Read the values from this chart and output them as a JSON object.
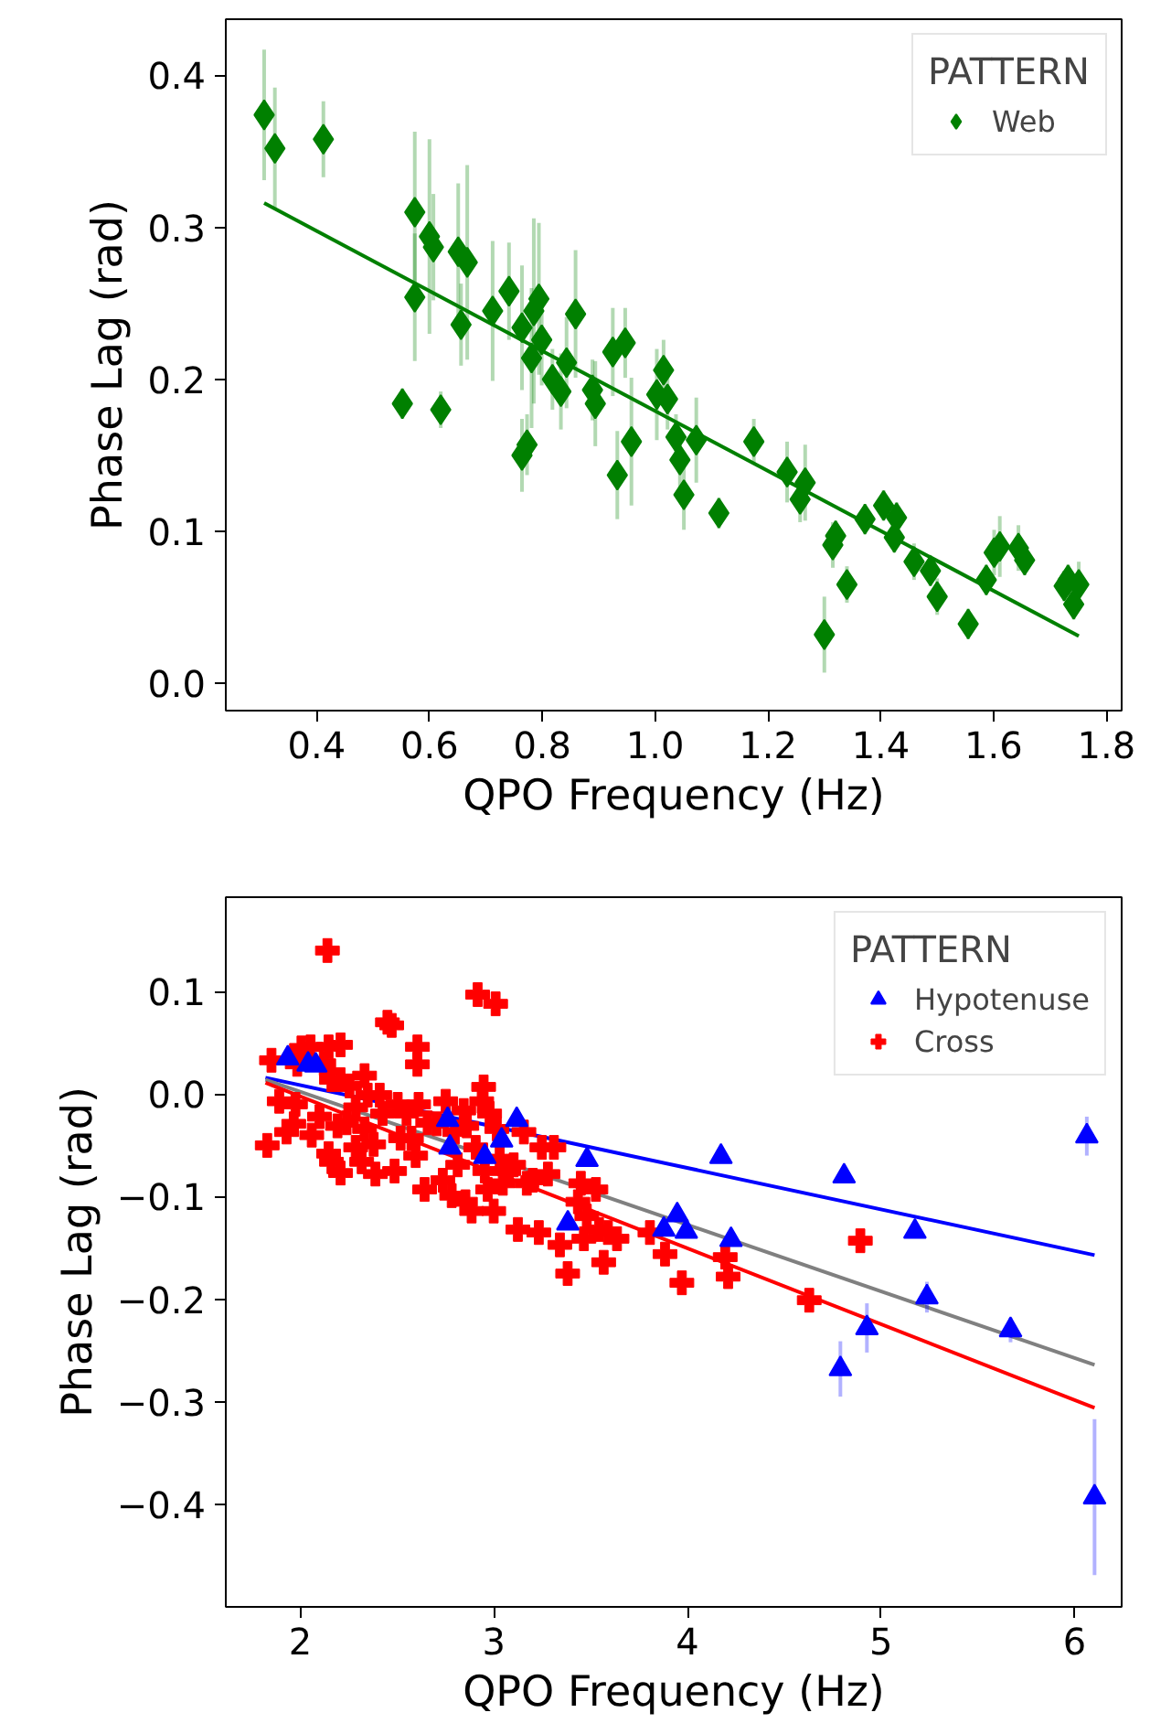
{
  "chart_data": [
    {
      "type": "scatter",
      "xlabel": "QPO Frequency (Hz)",
      "ylabel": "Phase Lag (rad)",
      "legend_title": "PATTERN",
      "legend": "top right",
      "grid": false,
      "xlim": [
        0.239,
        1.827
      ],
      "ylim": [
        -0.018,
        0.437
      ],
      "xticks": [
        0.4,
        0.6,
        0.8,
        {
          "value": 1,
          "label": "1.0"
        },
        1.2,
        1.4,
        1.6,
        1.8
      ],
      "yticks": [
        {
          "value": 0,
          "label": "0.0"
        },
        0.1,
        0.2,
        0.3,
        0.4
      ],
      "series": [
        {
          "name": "Web",
          "color": "#008000",
          "marker": "diamond",
          "x": [
            0.307,
            0.326,
            0.412,
            0.552,
            0.574,
            0.574,
            0.6,
            0.607,
            0.62,
            0.651,
            0.667,
            0.656,
            0.712,
            0.741,
            0.764,
            0.785,
            0.794,
            0.781,
            0.799,
            0.764,
            0.773,
            0.818,
            0.833,
            0.843,
            0.859,
            0.889,
            0.894,
            0.925,
            0.947,
            0.933,
            0.958,
            1.003,
            1.015,
            1.022,
            1.037,
            1.044,
            1.051,
            1.073,
            1.113,
            1.175,
            1.234,
            1.257,
            1.266,
            1.3,
            1.315,
            1.32,
            1.34,
            1.372,
            1.405,
            1.428,
            1.424,
            1.459,
            1.488,
            1.5,
            1.555,
            1.587,
            1.601,
            1.611,
            1.644,
            1.655,
            1.725,
            1.732,
            1.742,
            1.751
          ],
          "values": [
            0.374,
            0.352,
            0.358,
            0.184,
            0.31,
            0.254,
            0.294,
            0.287,
            0.18,
            0.284,
            0.277,
            0.236,
            0.245,
            0.258,
            0.234,
            0.245,
            0.253,
            0.214,
            0.226,
            0.15,
            0.157,
            0.2,
            0.192,
            0.211,
            0.243,
            0.193,
            0.184,
            0.218,
            0.224,
            0.137,
            0.159,
            0.19,
            0.206,
            0.187,
            0.162,
            0.147,
            0.124,
            0.16,
            0.112,
            0.159,
            0.139,
            0.121,
            0.132,
            0.032,
            0.091,
            0.097,
            0.065,
            0.108,
            0.117,
            0.109,
            0.096,
            0.08,
            0.074,
            0.057,
            0.039,
            0.068,
            0.086,
            0.09,
            0.089,
            0.081,
            0.064,
            0.068,
            0.052,
            0.065
          ],
          "errors": [
            0.043,
            0.04,
            0.025,
            0.01,
            0.053,
            0.042,
            0.064,
            0.035,
            0.012,
            0.045,
            0.064,
            0.027,
            0.046,
            0.032,
            0.041,
            0.061,
            0.05,
            0.046,
            0.03,
            0.024,
            0.02,
            0.02,
            0.025,
            0.03,
            0.042,
            0.02,
            0.028,
            0.029,
            0.023,
            0.029,
            0.042,
            0.03,
            0.02,
            0.02,
            0.015,
            0.02,
            0.023,
            0.028,
            0.01,
            0.015,
            0.02,
            0.015,
            0.025,
            0.025,
            0.015,
            0.01,
            0.012,
            0.01,
            0.01,
            0.01,
            0.01,
            0.012,
            0.01,
            0.012,
            0.01,
            0.01,
            0.015,
            0.02,
            0.015,
            0.01,
            0.01,
            0.01,
            0.01,
            0.015
          ]
        },
        {
          "type": "line",
          "color": "#008000",
          "x": [
            0.307,
            1.751
          ],
          "values": [
            0.316,
            0.031
          ]
        }
      ]
    },
    {
      "type": "scatter",
      "xlabel": "QPO Frequency (Hz)",
      "ylabel": "Phase Lag (rad)",
      "legend_title": "PATTERN",
      "legend": "top right",
      "grid": false,
      "xlim": [
        1.615,
        6.243
      ],
      "ylim": [
        -0.5,
        0.192
      ],
      "xticks": [
        2,
        3,
        4,
        5,
        6
      ],
      "yticks": [
        {
          "value": -0.4,
          "label": "−0.4"
        },
        {
          "value": -0.3,
          "label": "−0.3"
        },
        {
          "value": -0.2,
          "label": "−0.2"
        },
        {
          "value": -0.1,
          "label": "−0.1"
        },
        {
          "value": 0,
          "label": "0.0"
        },
        0.1
      ],
      "series": [
        {
          "name": "Hypotenuse",
          "color": "#0000ff",
          "marker": "triangle",
          "x": [
            1.935,
            2.04,
            2.08,
            2.761,
            2.773,
            2.953,
            3.04,
            3.118,
            3.382,
            3.481,
            3.878,
            3.947,
            3.994,
            4.173,
            4.225,
            4.79,
            4.809,
            4.927,
            5.175,
            5.237,
            5.669,
            6.063,
            6.103
          ],
          "values": [
            0.035,
            0.029,
            0.028,
            -0.025,
            -0.052,
            -0.061,
            -0.045,
            -0.025,
            -0.126,
            -0.064,
            -0.132,
            -0.118,
            -0.134,
            -0.061,
            -0.142,
            -0.268,
            -0.08,
            -0.228,
            -0.134,
            -0.198,
            -0.23,
            -0.041,
            -0.393
          ],
          "errors": [
            null,
            null,
            null,
            null,
            null,
            null,
            null,
            null,
            null,
            null,
            null,
            null,
            null,
            null,
            null,
            0.027,
            null,
            0.024,
            null,
            0.015,
            0.012,
            0.019,
            0.076
          ]
        },
        {
          "name": "Cross",
          "color": "#ff0000",
          "marker": "cross",
          "x": [
            1.829,
            1.851,
            1.929,
            1.891,
            1.975,
            1.966,
            2.006,
            2.053,
            1.984,
            2.059,
            2.099,
            2.14,
            2.146,
            2.208,
            2.121,
            2.161,
            2.208,
            2.254,
            2.146,
            2.161,
            2.208,
            2.192,
            2.239,
            2.286,
            2.332,
            2.332,
            2.348,
            2.379,
            2.388,
            2.317,
            2.286,
            2.41,
            2.45,
            2.472,
            2.425,
            2.487,
            2.503,
            2.518,
            2.549,
            2.574,
            2.596,
            2.605,
            2.605,
            2.611,
            2.642,
            2.658,
            2.705,
            2.736,
            2.751,
            2.782,
            2.798,
            2.813,
            2.844,
            2.853,
            2.86,
            2.885,
            2.916,
            2.937,
            2.947,
            2.906,
            2.953,
            2.968,
            2.978,
            2.999,
            3.009,
            3.015,
            3.03,
            3.046,
            3.077,
            3.102,
            3.124,
            3.155,
            3.17,
            3.201,
            3.232,
            3.248,
            3.279,
            3.31,
            3.341,
            3.381,
            3.434,
            3.465,
            3.449,
            3.48,
            3.527,
            3.543,
            3.567,
            3.589,
            3.636,
            3.806,
            3.884,
            3.971,
            4.195,
            4.21,
            4.629,
            4.893
          ],
          "values": [
            -0.05,
            0.033,
            -0.037,
            -0.007,
            -0.01,
            -0.029,
            0.045,
            0.046,
            0.029,
            -0.04,
            -0.022,
            0.14,
            0.046,
            0.048,
            0.03,
            0.014,
            0.014,
            0.008,
            -0.058,
            -0.066,
            -0.077,
            -0.031,
            -0.028,
            -0.013,
            0.018,
            -0.034,
            -0.001,
            -0.049,
            -0.078,
            -0.066,
            -0.052,
            -0.001,
            0.07,
            0.067,
            -0.019,
            -0.075,
            -0.01,
            -0.043,
            -0.019,
            -0.043,
            -0.06,
            0.046,
            0.029,
            -0.01,
            -0.093,
            -0.028,
            -0.029,
            -0.084,
            -0.007,
            -0.099,
            -0.037,
            -0.069,
            -0.016,
            -0.105,
            -0.031,
            -0.114,
            0.097,
            -0.007,
            0.007,
            -0.052,
            -0.075,
            -0.093,
            -0.019,
            -0.114,
            0.088,
            -0.034,
            -0.063,
            -0.087,
            -0.075,
            -0.069,
            -0.132,
            -0.037,
            -0.087,
            -0.084,
            -0.135,
            -0.052,
            -0.078,
            -0.052,
            -0.147,
            -0.175,
            -0.105,
            -0.141,
            -0.087,
            -0.119,
            -0.093,
            -0.132,
            -0.164,
            -0.135,
            -0.141,
            -0.135,
            -0.156,
            -0.184,
            -0.159,
            -0.178,
            -0.201,
            -0.143
          ]
        },
        {
          "type": "line",
          "color": "#0000ff",
          "x": [
            1.82,
            6.103
          ],
          "values": [
            0.016,
            -0.157
          ]
        },
        {
          "type": "line",
          "color": "#808080",
          "x": [
            1.82,
            6.103
          ],
          "values": [
            0.014,
            -0.264
          ]
        },
        {
          "type": "line",
          "color": "#ff0000",
          "x": [
            1.82,
            6.103
          ],
          "values": [
            0.011,
            -0.306
          ]
        }
      ]
    }
  ]
}
